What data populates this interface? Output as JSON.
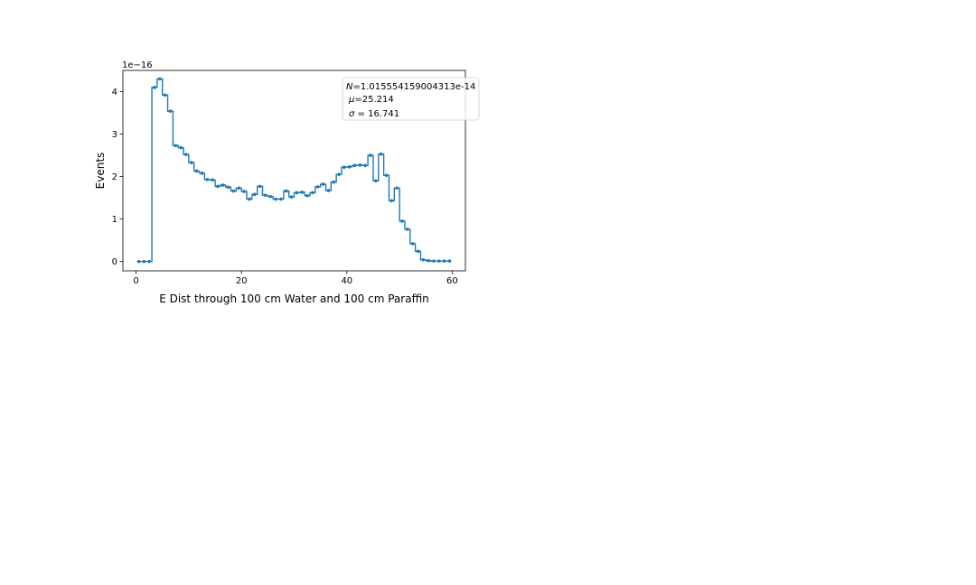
{
  "chart_data": {
    "type": "line",
    "drawstyle": "steps-mid",
    "title": "",
    "xlabel": "E Dist through 100 cm Water and 100 cm Paraffin",
    "ylabel": "Events",
    "y_offset_label": "1e−16",
    "xlim": [
      -2.5,
      62.5
    ],
    "ylim": [
      -0.22,
      4.5
    ],
    "x_ticks": [
      0,
      20,
      40,
      60
    ],
    "x_tick_labels": [
      "0",
      "20",
      "40",
      "60"
    ],
    "y_ticks": [
      0,
      1,
      2,
      3,
      4
    ],
    "y_tick_labels": [
      "0",
      "1",
      "2",
      "3",
      "4"
    ],
    "grid": false,
    "series": [
      {
        "color": "#1f77b4",
        "x": [
          0.5,
          1.5,
          2.5,
          3.5,
          4.5,
          5.5,
          6.5,
          7.5,
          8.5,
          9.5,
          10.5,
          11.5,
          12.5,
          13.5,
          14.5,
          15.5,
          16.5,
          17.5,
          18.5,
          19.5,
          20.5,
          21.5,
          22.5,
          23.5,
          24.5,
          25.5,
          26.5,
          27.5,
          28.5,
          29.5,
          30.5,
          31.5,
          32.5,
          33.5,
          34.5,
          35.5,
          36.5,
          37.5,
          38.5,
          39.5,
          40.5,
          41.5,
          42.5,
          43.5,
          44.5,
          45.5,
          46.5,
          47.5,
          48.5,
          49.5,
          50.5,
          51.5,
          52.5,
          53.5,
          54.5,
          55.5,
          56.5,
          57.5,
          58.5,
          59.5
        ],
        "y": [
          0,
          0,
          0,
          4.1,
          4.3,
          3.92,
          3.54,
          2.73,
          2.68,
          2.52,
          2.33,
          2.13,
          2.08,
          1.93,
          1.92,
          1.77,
          1.8,
          1.75,
          1.66,
          1.73,
          1.65,
          1.47,
          1.58,
          1.77,
          1.56,
          1.53,
          1.47,
          1.47,
          1.66,
          1.52,
          1.62,
          1.63,
          1.55,
          1.62,
          1.76,
          1.82,
          1.67,
          1.87,
          2.05,
          2.22,
          2.23,
          2.26,
          2.27,
          2.26,
          2.5,
          1.9,
          2.53,
          2.03,
          1.43,
          1.73,
          0.95,
          0.76,
          0.42,
          0.24,
          0.04,
          0.02,
          0.01,
          0.01,
          0.01,
          0.01
        ]
      }
    ],
    "legend": {
      "placement": "top-right",
      "lines": [
        {
          "symbol": "N",
          "text": "=1.015554159004313e-14"
        },
        {
          "symbol": "μ",
          "text": "=25.214"
        },
        {
          "symbol": "σ",
          "text": " = 16.741"
        }
      ]
    }
  }
}
